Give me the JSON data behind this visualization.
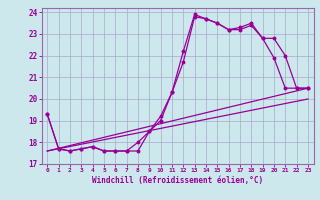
{
  "xlabel": "Windchill (Refroidissement éolien,°C)",
  "bg_color": "#cce8ec",
  "grid_color": "#aaaacc",
  "line_color": "#990099",
  "spine_color": "#9966aa",
  "xlim": [
    -0.5,
    23.5
  ],
  "ylim": [
    17,
    24.2
  ],
  "yticks": [
    17,
    18,
    19,
    20,
    21,
    22,
    23,
    24
  ],
  "xticks": [
    0,
    1,
    2,
    3,
    4,
    5,
    6,
    7,
    8,
    9,
    10,
    11,
    12,
    13,
    14,
    15,
    16,
    17,
    18,
    19,
    20,
    21,
    22,
    23
  ],
  "series1_x": [
    0,
    1,
    2,
    3,
    4,
    5,
    6,
    7,
    8,
    9,
    10,
    11,
    12,
    13,
    14,
    15,
    16,
    17,
    18,
    19,
    20,
    21,
    22,
    23
  ],
  "series1_y": [
    19.3,
    17.7,
    17.6,
    17.7,
    17.8,
    17.6,
    17.6,
    17.6,
    17.6,
    18.5,
    19.0,
    20.3,
    21.7,
    23.8,
    23.7,
    23.5,
    23.2,
    23.2,
    23.4,
    22.8,
    21.9,
    20.5,
    20.5,
    20.5
  ],
  "series2_x": [
    0,
    1,
    2,
    3,
    4,
    5,
    6,
    7,
    8,
    9,
    10,
    11,
    12,
    13,
    14,
    15,
    16,
    17,
    18,
    19,
    20,
    21,
    22,
    23
  ],
  "series2_y": [
    19.3,
    17.7,
    17.6,
    17.7,
    17.8,
    17.6,
    17.6,
    17.6,
    18.0,
    18.5,
    19.2,
    20.3,
    22.2,
    23.9,
    23.7,
    23.5,
    23.2,
    23.3,
    23.5,
    22.8,
    22.8,
    22.0,
    20.5,
    20.5
  ],
  "series3_x": [
    0,
    23
  ],
  "series3_y": [
    17.6,
    20.5
  ],
  "series4_x": [
    0,
    23
  ],
  "series4_y": [
    17.6,
    20.0
  ]
}
